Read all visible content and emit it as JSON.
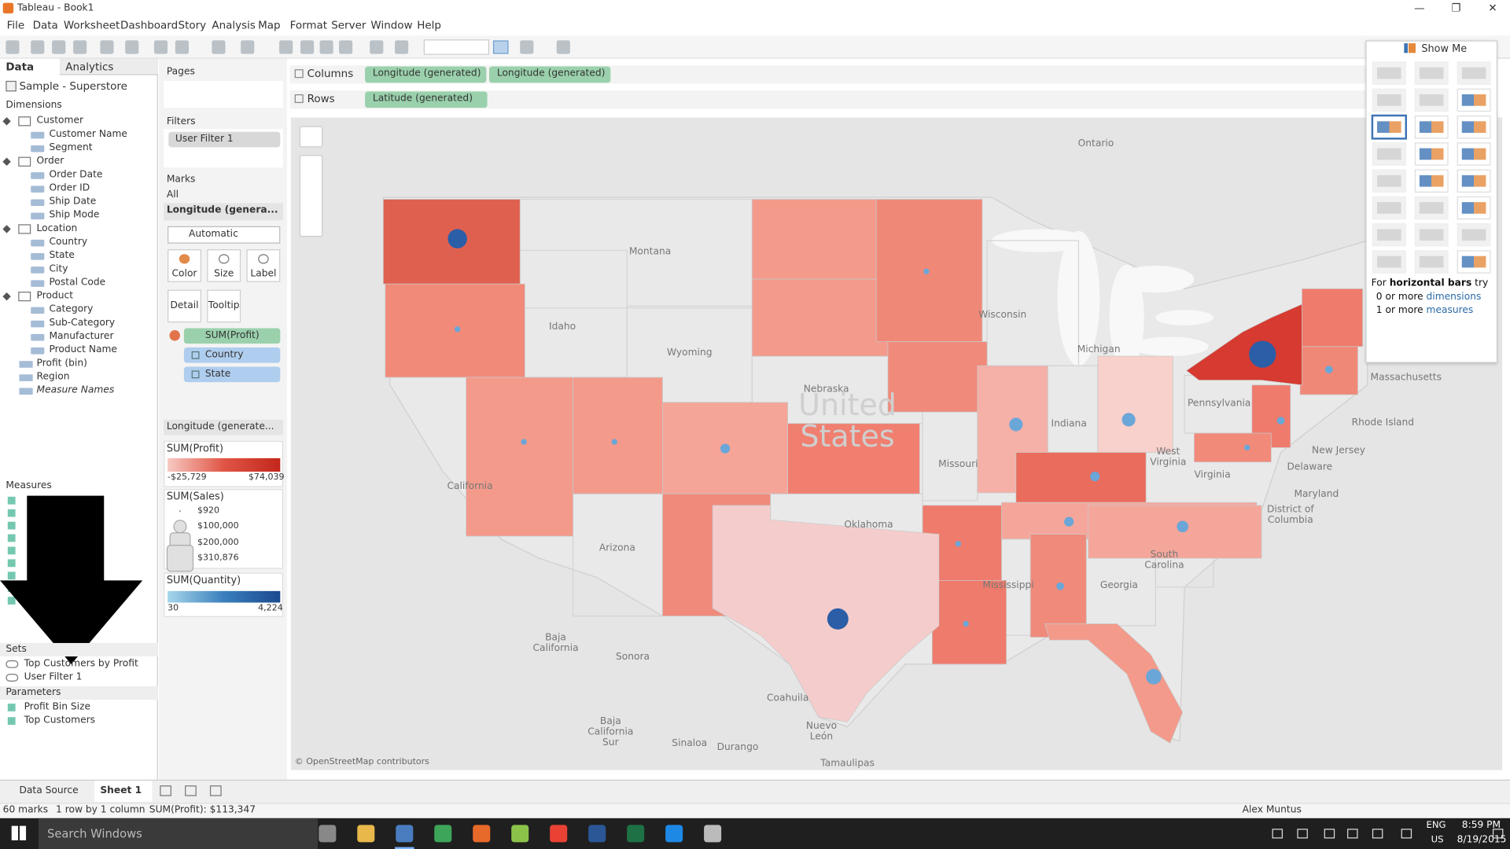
{
  "window": {
    "title": "Tableau - Book1"
  },
  "menu": [
    "File",
    "Data",
    "Worksheet",
    "Dashboard",
    "Story",
    "Analysis",
    "Map",
    "Format",
    "Server",
    "Window",
    "Help"
  ],
  "data_pane": {
    "tabs": [
      "Data",
      "Analytics"
    ],
    "source": "Sample - Superstore",
    "dimensions_header": "Dimensions",
    "folders": [
      {
        "name": "Customer",
        "fields": [
          "Customer Name",
          "Segment"
        ]
      },
      {
        "name": "Order",
        "fields": [
          "Order Date",
          "Order ID",
          "Ship Date",
          "Ship Mode"
        ]
      },
      {
        "name": "Location",
        "fields": [
          "Country",
          "State",
          "City",
          "Postal Code"
        ]
      },
      {
        "name": "Product",
        "fields": [
          "Category",
          "Sub-Category",
          "Manufacturer",
          "Product Name"
        ]
      }
    ],
    "fields": [
      "Profit (bin)",
      "Region",
      "Measure Names"
    ],
    "measures_header": "Measures",
    "sets_header": "Sets",
    "sets": [
      "Top Customers by Profit",
      "User Filter 1"
    ],
    "parameters_header": "Parameters",
    "parameters": [
      "Profit Bin Size",
      "Top Customers"
    ]
  },
  "shelves": {
    "pages": "Pages",
    "filters": "Filters",
    "filter_pills": [
      "User Filter 1"
    ],
    "columns": "Columns",
    "column_pills": [
      "Longitude (generated)",
      "Longitude (generated)"
    ],
    "rows": "Rows",
    "row_pills": [
      "Latitude (generated)"
    ]
  },
  "marks": {
    "header": "Marks",
    "all": "All",
    "layer": "Longitude (genera...",
    "mark_type": "Automatic",
    "buttons": [
      "Color",
      "Size",
      "Label",
      "Detail",
      "Tooltip"
    ],
    "pills": [
      "SUM(Profit)",
      "Country",
      "State"
    ],
    "layer2": "Longitude (generate..."
  },
  "legends": {
    "profit": {
      "title": "SUM(Profit)",
      "min": "-$25,729",
      "max": "$74,039"
    },
    "sales": {
      "title": "SUM(Sales)",
      "items": [
        "$920",
        "$100,000",
        "$200,000",
        "$310,876"
      ]
    },
    "quantity": {
      "title": "SUM(Quantity)",
      "min": "30",
      "max": "4,224"
    }
  },
  "map": {
    "watermark": "United States",
    "labels": [
      "Ontario",
      "Montana",
      "Idaho",
      "Wyoming",
      "Nebraska",
      "Wisconsin",
      "Michigan",
      "Indiana",
      "Pennsylvania",
      "Massachusetts",
      "Rhode Island",
      "New Jersey",
      "Delaware",
      "Maryland",
      "District of Columbia",
      "Virginia",
      "West Virginia",
      "California",
      "Missouri",
      "Oklahoma",
      "Arizona",
      "South Carolina",
      "Georgia",
      "Mississippi",
      "Baja California",
      "Sonora",
      "Coahuila",
      "Baja California Sur",
      "Nuevo León",
      "Sinaloa",
      "Durango",
      "Tamaulipas"
    ],
    "attribution": "© OpenStreetMap contributors"
  },
  "show_me": {
    "title": "Show Me",
    "hint": {
      "lead": "For",
      "chart": "horizontal bars",
      "trail": "try",
      "lines": [
        {
          "count": "0 or more",
          "field": "dimensions"
        },
        {
          "count": "1 or more",
          "field": "measures"
        }
      ]
    }
  },
  "tabs": [
    "Data Source",
    "Sheet 1"
  ],
  "status": {
    "marks": "60 marks",
    "layout": "1 row by 1 column",
    "sum": "SUM(Profit): $113,347",
    "user": "Alex Muntus"
  },
  "taskbar": {
    "search": "Search Windows",
    "language": "ENG",
    "region": "US",
    "time": "8:59 PM",
    "date": "8/19/2015"
  }
}
